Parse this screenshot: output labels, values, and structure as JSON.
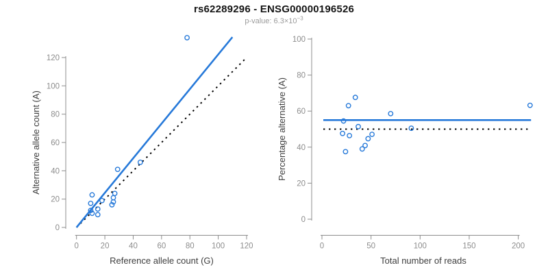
{
  "title": "rs62289296 - ENSG00000196526",
  "subtitle": {
    "label": "p-value: ",
    "mantissa": "6.3",
    "times": "×",
    "base": "10",
    "exponent": "−3"
  },
  "colors": {
    "accent_blue": "#2679D9",
    "reference_black": "#000000",
    "axis_gray": "#8c8c8c"
  },
  "chart_data": [
    {
      "type": "scatter",
      "name": "allele-counts",
      "xlabel": "Reference allele count (G)",
      "ylabel": "Alternative allele count (A)",
      "xlim": [
        0,
        123
      ],
      "ylim": [
        0,
        140
      ],
      "xticks": [
        0,
        20,
        40,
        60,
        80,
        100,
        120
      ],
      "yticks": [
        0,
        20,
        40,
        60,
        80,
        100,
        120
      ],
      "grid": false,
      "points": [
        [
          11,
          23
        ],
        [
          10,
          17
        ],
        [
          29,
          41
        ],
        [
          10,
          12
        ],
        [
          18,
          19
        ],
        [
          45,
          46
        ],
        [
          11,
          10
        ],
        [
          15,
          13
        ],
        [
          27,
          24
        ],
        [
          26,
          21
        ],
        [
          26,
          18
        ],
        [
          25,
          16
        ],
        [
          15,
          9
        ],
        [
          78,
          134
        ]
      ],
      "fit_line": {
        "style": "solid",
        "color": "#2679D9",
        "slope": 1.222,
        "from": [
          0,
          0
        ],
        "to": [
          110,
          134.4
        ]
      },
      "reference_line": {
        "style": "dotted",
        "color": "#000000",
        "slope": 1.0,
        "from": [
          0,
          0
        ],
        "to": [
          120,
          120
        ]
      }
    },
    {
      "type": "scatter",
      "name": "percentage-vs-reads",
      "xlabel": "Total number of reads",
      "ylabel": "Percentage alternative (A)",
      "xlim": [
        0,
        215
      ],
      "ylim": [
        0,
        100
      ],
      "xticks": [
        0,
        50,
        100,
        150,
        200
      ],
      "yticks": [
        0,
        20,
        40,
        60,
        80,
        100
      ],
      "grid": false,
      "points": [
        [
          34,
          67.6
        ],
        [
          27,
          63.0
        ],
        [
          70,
          58.6
        ],
        [
          22,
          54.5
        ],
        [
          37,
          51.4
        ],
        [
          91,
          50.5
        ],
        [
          21,
          47.6
        ],
        [
          28,
          46.4
        ],
        [
          51,
          47.1
        ],
        [
          47,
          44.7
        ],
        [
          44,
          40.9
        ],
        [
          41,
          39.0
        ],
        [
          24,
          37.5
        ],
        [
          212,
          63.2
        ]
      ],
      "fit_line": {
        "style": "solid",
        "color": "#2679D9",
        "y": 55,
        "x_start": 0,
        "x_end": 213
      },
      "reference_line": {
        "style": "dotted",
        "color": "#000000",
        "y": 50,
        "x_start": 0,
        "x_end": 211
      }
    }
  ]
}
